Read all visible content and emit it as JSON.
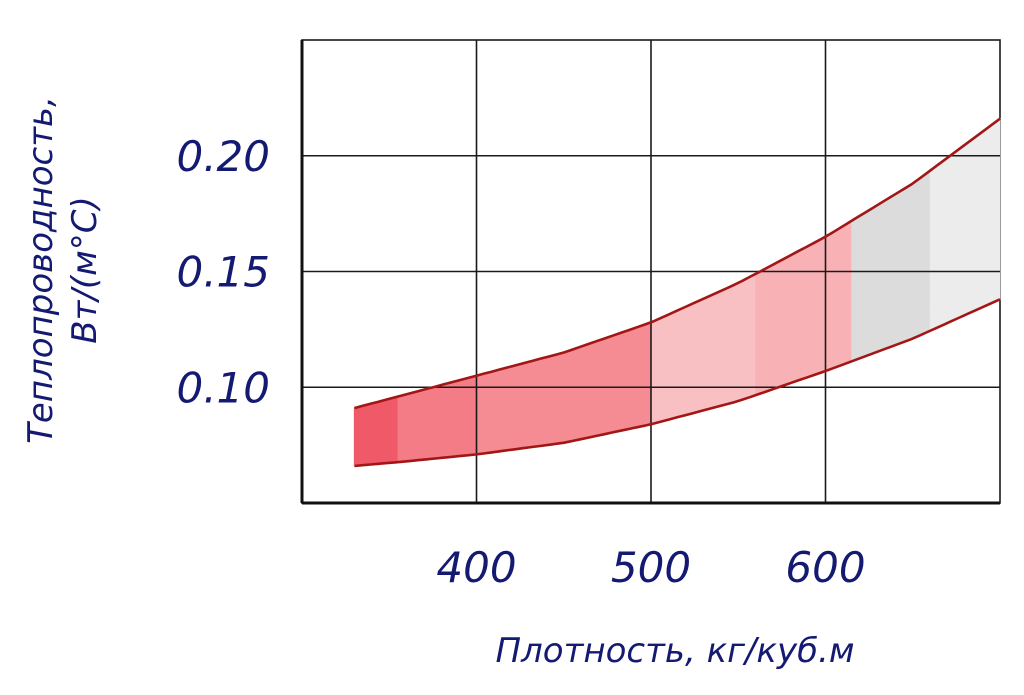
{
  "chart_data": {
    "type": "area",
    "title": "",
    "xlabel": "Плотность, кг/куб.м",
    "ylabel_line1": "Теплопроводность,",
    "ylabel_line2": "Вт/(м°С)",
    "xlim": [
      300,
      700
    ],
    "ylim": [
      0.05,
      0.25
    ],
    "x_ticks": [
      400,
      500,
      600
    ],
    "x_tick_labels": [
      "400",
      "500",
      "600"
    ],
    "y_ticks": [
      0.1,
      0.15,
      0.2
    ],
    "y_tick_labels": [
      "0.10",
      "0.15",
      "0.20"
    ],
    "grid": true,
    "series": [
      {
        "role": "upper",
        "x": [
          330,
          360,
          400,
          450,
          500,
          550,
          600,
          650,
          700
        ],
        "values": [
          0.091,
          0.097,
          0.105,
          0.115,
          0.128,
          0.145,
          0.165,
          0.188,
          0.216
        ]
      },
      {
        "role": "lower",
        "x": [
          330,
          360,
          400,
          450,
          500,
          550,
          600,
          650,
          700
        ],
        "values": [
          0.066,
          0.068,
          0.071,
          0.076,
          0.084,
          0.094,
          0.107,
          0.121,
          0.138
        ]
      }
    ],
    "band_colors": [
      {
        "from": 330,
        "to": 355,
        "color": "#f05a68"
      },
      {
        "from": 355,
        "to": 400,
        "color": "#f47c86"
      },
      {
        "from": 400,
        "to": 500,
        "color": "#f58b93"
      },
      {
        "from": 500,
        "to": 560,
        "color": "#f9c0c3"
      },
      {
        "from": 560,
        "to": 615,
        "color": "#f8b2b6"
      },
      {
        "from": 615,
        "to": 660,
        "color": "#dcdcdc"
      },
      {
        "from": 660,
        "to": 700,
        "color": "#ececec"
      }
    ],
    "line_color": "#a31616"
  }
}
